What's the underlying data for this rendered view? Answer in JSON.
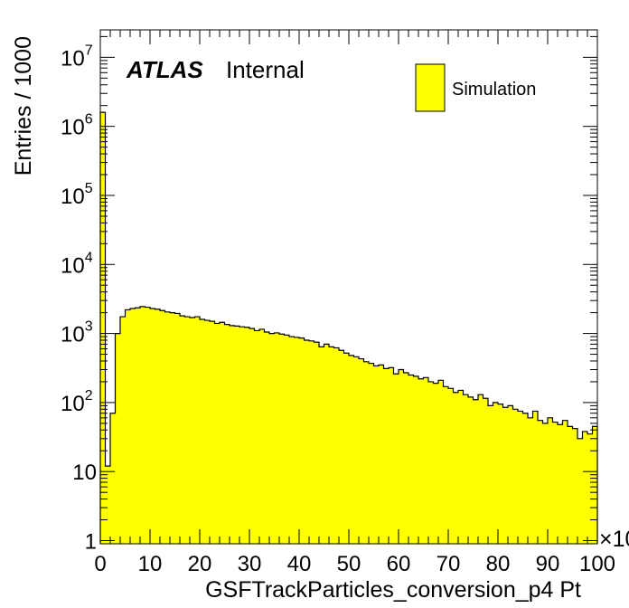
{
  "chart_data": {
    "type": "bar",
    "histogram": true,
    "xlabel": "GSFTrackParticles_conversion_p4 Pt",
    "ylabel": "Entries / 1000",
    "x_multiplier": "×10",
    "xlim": [
      0,
      100
    ],
    "ylim": [
      0.9,
      25000000
    ],
    "log_y": true,
    "bin_width": 1,
    "fill_color": "#ffff00",
    "line_color": "#000000",
    "x_ticks": [
      0,
      10,
      20,
      30,
      40,
      50,
      60,
      70,
      80,
      90,
      100
    ],
    "x_tick_labels": [
      "0",
      "10",
      "20",
      "30",
      "40",
      "50",
      "60",
      "70",
      "80",
      "90",
      "100"
    ],
    "y_ticks": [
      1,
      10,
      100,
      1000,
      10000,
      100000,
      1000000,
      10000000
    ],
    "y_tick_bases": [
      "1",
      "10",
      "10",
      "10",
      "10",
      "10",
      "10",
      "10"
    ],
    "y_tick_exps": [
      "",
      "",
      "2",
      "3",
      "4",
      "5",
      "6",
      "7"
    ],
    "legend": {
      "label": "Simulation",
      "placement": "top-right"
    },
    "atlas_label": {
      "bold": "ATLAS",
      "text": "Internal"
    },
    "values": [
      1600000,
      12,
      70,
      1000,
      1750,
      2200,
      2300,
      2350,
      2450,
      2400,
      2300,
      2250,
      2150,
      2050,
      2000,
      1950,
      1800,
      1750,
      1700,
      1750,
      1600,
      1550,
      1500,
      1400,
      1450,
      1350,
      1300,
      1280,
      1250,
      1230,
      1180,
      1100,
      1150,
      1050,
      1000,
      1020,
      980,
      950,
      900,
      880,
      860,
      800,
      780,
      750,
      640,
      700,
      640,
      620,
      570,
      520,
      480,
      460,
      430,
      390,
      370,
      340,
      350,
      310,
      320,
      260,
      300,
      270,
      250,
      240,
      220,
      230,
      200,
      190,
      210,
      170,
      160,
      140,
      150,
      130,
      120,
      110,
      130,
      115,
      90,
      100,
      95,
      85,
      90,
      80,
      75,
      70,
      60,
      75,
      55,
      50,
      60,
      52,
      48,
      55,
      45,
      42,
      30,
      38,
      35,
      45
    ]
  }
}
